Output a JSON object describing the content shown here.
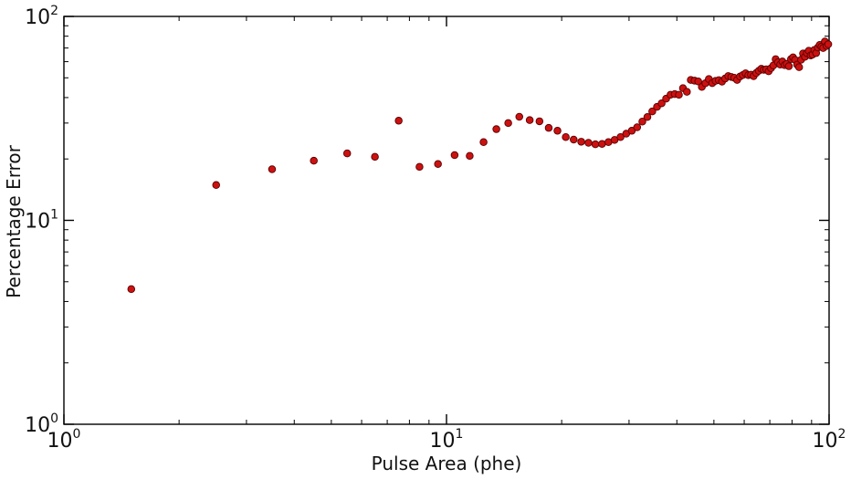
{
  "chart_data": {
    "type": "scatter",
    "title": "",
    "xlabel": "Pulse Area (phe)",
    "ylabel": "Percentage Error",
    "xscale": "log",
    "yscale": "log",
    "xlim": [
      1,
      100
    ],
    "ylim": [
      1,
      100
    ],
    "grid": false,
    "legend": "none",
    "x_ticks": [
      {
        "value": 1,
        "base": "10",
        "exp": "0"
      },
      {
        "value": 10,
        "base": "10",
        "exp": "1"
      },
      {
        "value": 100,
        "base": "10",
        "exp": "2"
      }
    ],
    "y_ticks": [
      {
        "value": 1,
        "base": "10",
        "exp": "0"
      },
      {
        "value": 10,
        "base": "10",
        "exp": "1"
      },
      {
        "value": 100,
        "base": "10",
        "exp": "2"
      }
    ],
    "marker_color": "#cc1111",
    "marker_edge": "#5a0000",
    "series": [
      {
        "x": [
          1.5,
          2.5,
          3.5,
          4.5,
          5.5,
          6.5,
          7.5,
          8.5,
          9.5,
          10.5,
          11.5,
          12.5,
          13.5,
          14.5,
          15.5,
          16.5,
          17.5,
          18.5,
          19.5,
          20.5,
          21.5,
          22.5,
          23.5,
          24.5,
          25.5,
          26.5,
          27.5,
          28.5,
          29.5,
          30.5,
          31.5,
          32.5,
          33.5,
          34.5,
          35.5,
          36.5,
          37.5,
          38.5,
          39.5,
          40.5,
          41.5,
          42.5,
          43.5,
          44.5,
          45.5,
          46.5,
          47.5,
          48.5,
          49.5,
          50.5,
          51.5,
          52.5,
          53.5,
          54.5,
          55.5,
          56.5,
          57.5,
          58.5,
          59.5,
          60.5,
          61.5,
          62.5,
          63.5,
          64.5,
          65.5,
          66.5,
          67.5,
          68.5,
          69.5,
          70.5,
          71.5,
          72.5,
          73.5,
          74.5,
          75.5,
          76.5,
          77.5,
          78.5,
          79.5,
          80.5,
          81.5,
          82.5,
          83.5,
          84.5,
          85.5,
          86.5,
          87.5,
          88.5,
          89.5,
          90.5,
          91.5,
          92.5,
          93.5,
          94.5,
          95.5,
          96.5,
          97.5,
          98.5,
          99.5
        ],
        "y": [
          4.6,
          14.9,
          17.8,
          19.6,
          21.3,
          20.5,
          30.8,
          18.3,
          18.9,
          20.9,
          20.7,
          24.2,
          28.0,
          30.0,
          32.2,
          31.0,
          30.6,
          28.4,
          27.5,
          25.6,
          24.9,
          24.3,
          24.0,
          23.6,
          23.7,
          24.2,
          24.8,
          25.6,
          26.6,
          27.5,
          28.6,
          30.5,
          32.1,
          34.2,
          36.0,
          37.5,
          39.5,
          41.3,
          41.6,
          41.3,
          44.5,
          42.7,
          48.8,
          48.4,
          48.0,
          45.1,
          47.0,
          49.3,
          47.1,
          48.3,
          48.7,
          47.9,
          49.6,
          51.0,
          50.5,
          50.0,
          48.8,
          50.7,
          51.6,
          52.6,
          51.5,
          51.8,
          50.9,
          52.8,
          54.1,
          55.4,
          54.7,
          55.0,
          53.8,
          55.7,
          57.5,
          61.7,
          59.6,
          58.1,
          60.1,
          57.7,
          58.5,
          57.0,
          61.8,
          63.0,
          61.2,
          58.0,
          56.4,
          61.3,
          65.8,
          63.4,
          66.1,
          67.9,
          64.4,
          65.0,
          68.5,
          66.1,
          70.4,
          72.5,
          71.1,
          70.0,
          75.3,
          71.6,
          73.0
        ]
      }
    ]
  }
}
